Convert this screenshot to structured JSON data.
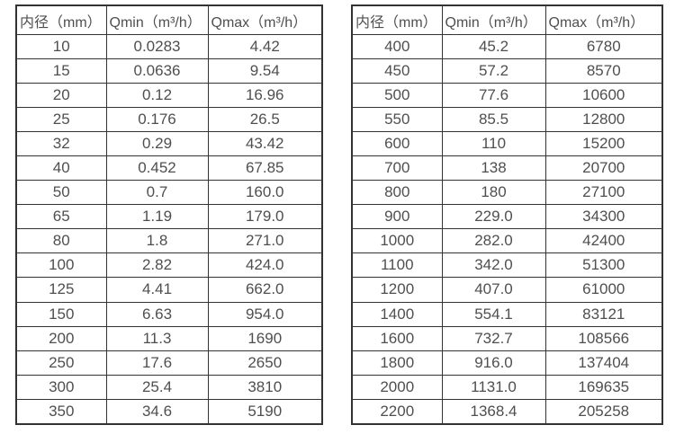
{
  "colors": {
    "background": "#ffffff",
    "border": "#333333",
    "text": "#4f4f4f"
  },
  "chart_data": [
    {
      "type": "table",
      "columns": [
        "内径（mm）",
        "Qmin（m³/h）",
        "Qmax（m³/h）"
      ],
      "rows": [
        [
          "10",
          "0.0283",
          "4.42"
        ],
        [
          "15",
          "0.0636",
          "9.54"
        ],
        [
          "20",
          "0.12",
          "16.96"
        ],
        [
          "25",
          "0.176",
          "26.5"
        ],
        [
          "32",
          "0.29",
          "43.42"
        ],
        [
          "40",
          "0.452",
          "67.85"
        ],
        [
          "50",
          "0.7",
          "160.0"
        ],
        [
          "65",
          "1.19",
          "179.0"
        ],
        [
          "80",
          "1.8",
          "271.0"
        ],
        [
          "100",
          "2.82",
          "424.0"
        ],
        [
          "125",
          "4.41",
          "662.0"
        ],
        [
          "150",
          "6.63",
          "954.0"
        ],
        [
          "200",
          "11.3",
          "1690"
        ],
        [
          "250",
          "17.6",
          "2650"
        ],
        [
          "300",
          "25.4",
          "3810"
        ],
        [
          "350",
          "34.6",
          "5190"
        ]
      ]
    },
    {
      "type": "table",
      "columns": [
        "内径（mm）",
        "Qmin（m³/h）",
        "Qmax（m³/h）"
      ],
      "rows": [
        [
          "400",
          "45.2",
          "6780"
        ],
        [
          "450",
          "57.2",
          "8570"
        ],
        [
          "500",
          "77.6",
          "10600"
        ],
        [
          "550",
          "85.5",
          "12800"
        ],
        [
          "600",
          "110",
          "15200"
        ],
        [
          "700",
          "138",
          "20700"
        ],
        [
          "800",
          "180",
          "27100"
        ],
        [
          "900",
          "229.0",
          "34300"
        ],
        [
          "1000",
          "282.0",
          "42400"
        ],
        [
          "1100",
          "342.0",
          "51300"
        ],
        [
          "1200",
          "407.0",
          "61000"
        ],
        [
          "1400",
          "554.1",
          "83121"
        ],
        [
          "1600",
          "732.7",
          "108566"
        ],
        [
          "1800",
          "916.0",
          "137404"
        ],
        [
          "2000",
          "1131.0",
          "169635"
        ],
        [
          "2200",
          "1368.4",
          "205258"
        ]
      ]
    }
  ]
}
